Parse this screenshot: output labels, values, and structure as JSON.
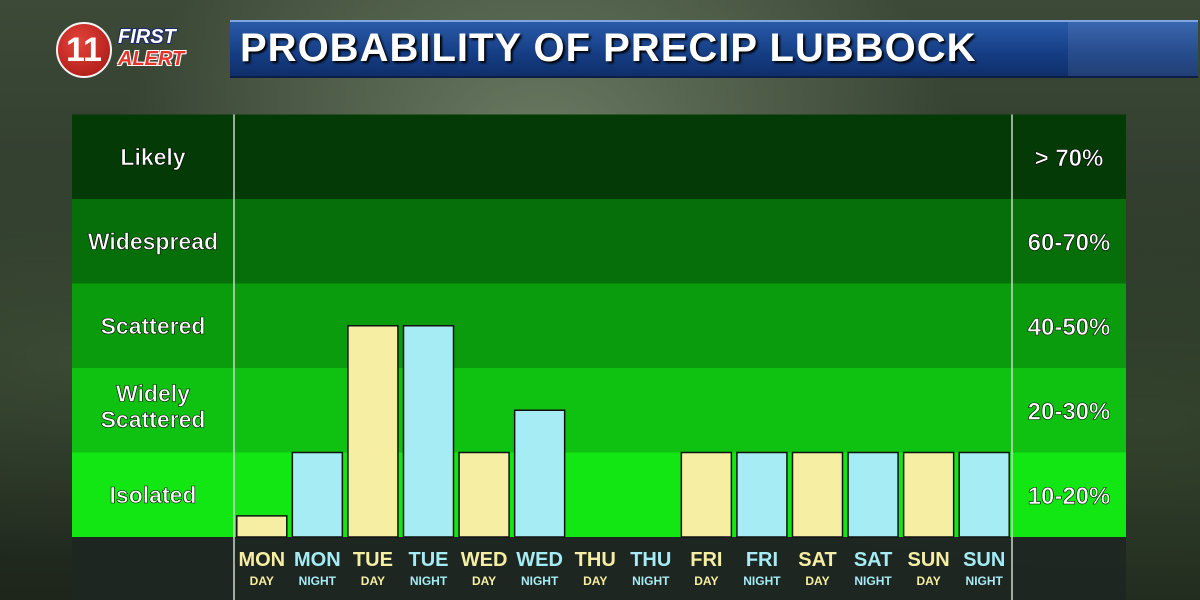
{
  "header": {
    "logo_number": "11",
    "logo_line1": "FIRST",
    "logo_line2": "ALERT",
    "title": "PROBABILITY OF PRECIP LUBBOCK"
  },
  "chart_data": {
    "type": "bar",
    "title": "PROBABILITY OF PRECIP LUBBOCK",
    "bands": [
      {
        "label": "Isolated",
        "range": "10-20%",
        "color": "#13e713"
      },
      {
        "label": "Widely Scattered",
        "range": "20-30%",
        "color": "#0fc111"
      },
      {
        "label": "Scattered",
        "range": "40-50%",
        "color": "#0a9c0c"
      },
      {
        "label": "Widespread",
        "range": "60-70%",
        "color": "#076f09"
      },
      {
        "label": "Likely",
        "range": "> 70%",
        "color": "#033a06"
      }
    ],
    "categories": [
      {
        "day": "MON",
        "period": "DAY"
      },
      {
        "day": "MON",
        "period": "NIGHT"
      },
      {
        "day": "TUE",
        "period": "DAY"
      },
      {
        "day": "TUE",
        "period": "NIGHT"
      },
      {
        "day": "WED",
        "period": "DAY"
      },
      {
        "day": "WED",
        "period": "NIGHT"
      },
      {
        "day": "THU",
        "period": "DAY"
      },
      {
        "day": "THU",
        "period": "NIGHT"
      },
      {
        "day": "FRI",
        "period": "DAY"
      },
      {
        "day": "FRI",
        "period": "NIGHT"
      },
      {
        "day": "SAT",
        "period": "DAY"
      },
      {
        "day": "SAT",
        "period": "NIGHT"
      },
      {
        "day": "SUN",
        "period": "DAY"
      },
      {
        "day": "SUN",
        "period": "NIGHT"
      }
    ],
    "values_in_bands": [
      0.25,
      1.0,
      2.5,
      2.5,
      1.0,
      1.5,
      0,
      0,
      1.0,
      1.0,
      1.0,
      1.0,
      1.0,
      1.0
    ],
    "ylim_bands": [
      0,
      5
    ],
    "colors": {
      "day": "#f6efa3",
      "night": "#a6ecf4",
      "day_label": "#f6efa3",
      "night_label": "#a6ecf4"
    }
  }
}
